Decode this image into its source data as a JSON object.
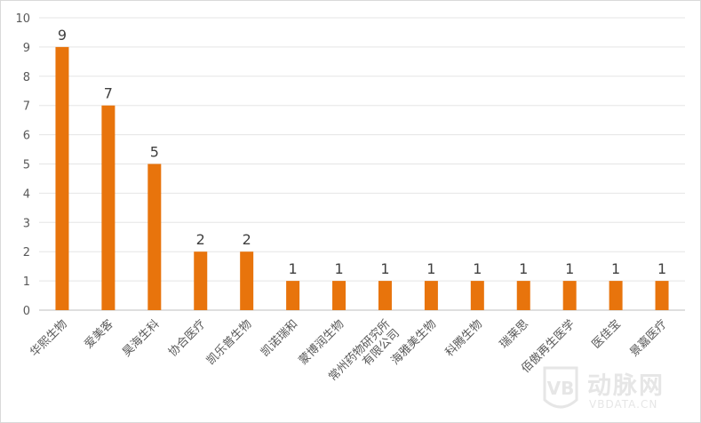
{
  "chart_data": {
    "type": "bar",
    "title": "",
    "xlabel": "",
    "ylabel": "",
    "ylim": [
      0,
      10
    ],
    "yticks": [
      0,
      1,
      2,
      3,
      4,
      5,
      6,
      7,
      8,
      9,
      10
    ],
    "grid": true,
    "bar_color": "#e8740c",
    "categories": [
      [
        "华熙生物"
      ],
      [
        "爱美客"
      ],
      [
        "昊海生科"
      ],
      [
        "协合医疗"
      ],
      [
        "凯乐普生物"
      ],
      [
        "凯诺瑞和"
      ],
      [
        "蒙博润生物"
      ],
      [
        "常州药物研究所",
        "有限公司"
      ],
      [
        "海雅美生物"
      ],
      [
        "科腾生物"
      ],
      [
        "瑞莱思"
      ],
      [
        "佰傲再生医学"
      ],
      [
        "医佳宝"
      ],
      [
        "景嘉医疗"
      ]
    ],
    "values": [
      9,
      7,
      5,
      2,
      2,
      1,
      1,
      1,
      1,
      1,
      1,
      1,
      1,
      1
    ]
  },
  "watermark": {
    "text": "动脉网",
    "sub": "VBDATA.CN",
    "mark": "VB"
  }
}
